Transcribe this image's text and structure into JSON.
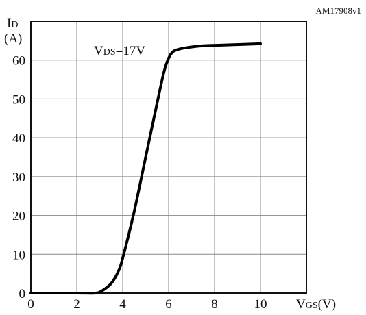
{
  "figure_code": "AM17908v1",
  "chart_data": {
    "type": "line",
    "x_axis": {
      "label_main": "V",
      "label_sub": "GS",
      "label_unit": "(V)",
      "min": 0,
      "max": 12,
      "ticks": [
        0,
        2,
        4,
        6,
        8,
        10
      ],
      "tick_labels": [
        "0",
        "2",
        "4",
        "6",
        "8",
        "10"
      ],
      "grid": true
    },
    "y_axis": {
      "label_main": "I",
      "label_sub": "D",
      "label_unit": "(A)",
      "min": 0,
      "max": 70,
      "ticks": [
        0,
        10,
        20,
        30,
        40,
        50,
        60
      ],
      "tick_labels": [
        "0",
        "10",
        "20",
        "30",
        "40",
        "50",
        "60"
      ],
      "grid": true
    },
    "annotation": {
      "main": "V",
      "sub": "DS",
      "value": "=17V"
    },
    "series": [
      {
        "color": "#000000",
        "x": [
          0,
          2,
          2.8,
          3.1,
          3.5,
          3.8,
          4.0,
          4.5,
          5.0,
          5.5,
          5.8,
          6.0,
          6.2,
          6.5,
          6.9,
          7.5,
          8.5,
          10.0
        ],
        "y": [
          0,
          0,
          0,
          0.6,
          2.5,
          5.5,
          9,
          21,
          35,
          49,
          57,
          60.5,
          62.2,
          62.9,
          63.3,
          63.7,
          63.9,
          64.2
        ]
      }
    ]
  }
}
